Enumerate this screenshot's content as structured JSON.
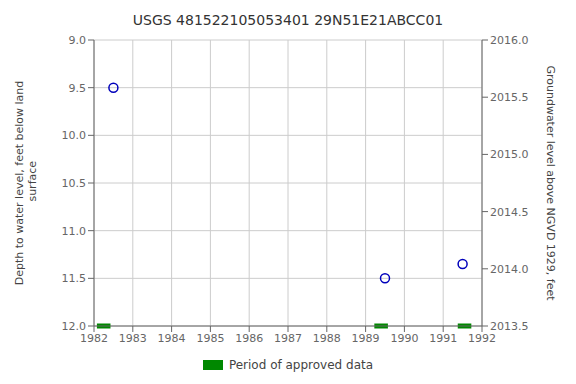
{
  "chart_data": {
    "type": "scatter",
    "title": "USGS 481522105053401 29N51E21ABCC01",
    "ylabel": "Depth to water level, feet below land\n surface",
    "y2label": "Groundwater level above NGVD 1929, feet",
    "xlim": [
      1982,
      1992
    ],
    "xticks": [
      1982,
      1983,
      1984,
      1985,
      1986,
      1987,
      1988,
      1989,
      1990,
      1991,
      1992
    ],
    "ylim": [
      12.0,
      9.0
    ],
    "yticks": [
      {
        "value": 9.0,
        "label": "9.0"
      },
      {
        "value": 9.5,
        "label": "9.5"
      },
      {
        "value": 10.0,
        "label": "10.0"
      },
      {
        "value": 10.5,
        "label": "10.5"
      },
      {
        "value": 11.0,
        "label": "11.0"
      },
      {
        "value": 11.5,
        "label": "11.5"
      },
      {
        "value": 12.0,
        "label": "12.0"
      }
    ],
    "y2lim": [
      2013.5,
      2016.0
    ],
    "y2ticks": [
      {
        "value": 2016.0,
        "label": "2016.0"
      },
      {
        "value": 2015.5,
        "label": "2015.5"
      },
      {
        "value": 2015.0,
        "label": "2015.0"
      },
      {
        "value": 2014.5,
        "label": "2014.5"
      },
      {
        "value": 2014.0,
        "label": "2014.0"
      },
      {
        "value": 2013.5,
        "label": "2013.5"
      }
    ],
    "grid": true,
    "series": [
      {
        "type": "scatter",
        "color": "#0000bb",
        "marker": "open_circle",
        "line_style": "none",
        "x": [
          1982.5,
          1989.5,
          1991.5
        ],
        "values": [
          9.5,
          11.5,
          11.35
        ]
      },
      {
        "type": "segment",
        "name": "Period of approved data",
        "color": "#008800",
        "x": [
          1982.25,
          1989.4,
          1991.55
        ],
        "values": [
          12.0,
          12.0,
          12.0
        ],
        "width": 0.35
      }
    ]
  }
}
